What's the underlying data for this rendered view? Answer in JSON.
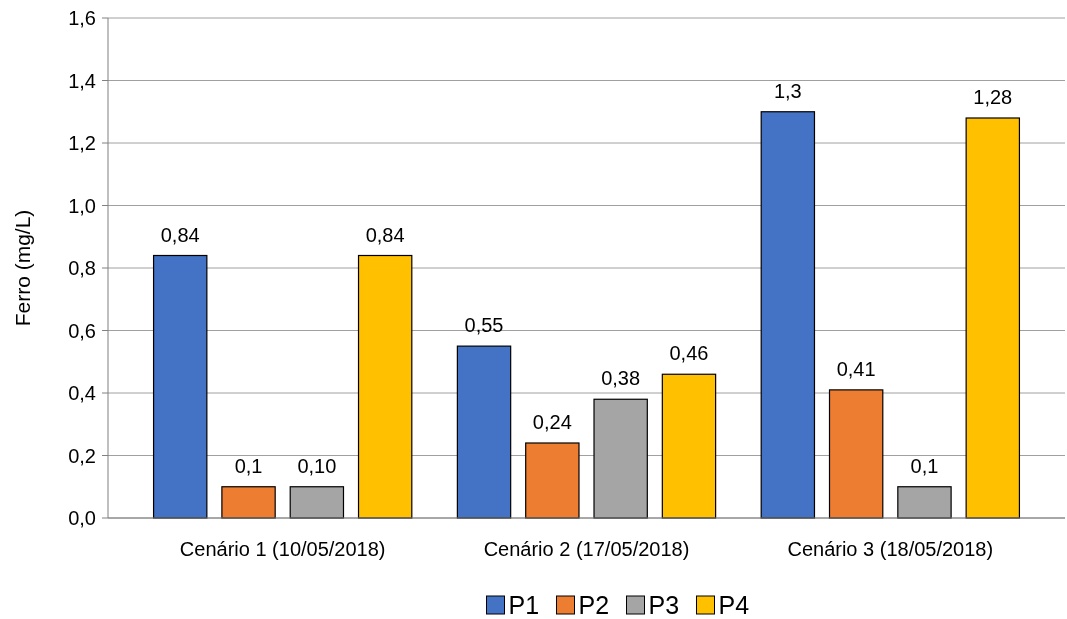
{
  "chart_data": {
    "type": "bar",
    "ylabel": "Ferro (mg/L)",
    "categories": [
      "Cenário 1 (10/05/2018)",
      "Cenário 2 (17/05/2018)",
      "Cenário 3 (18/05/2018)"
    ],
    "series": [
      {
        "name": "P1",
        "color": "#4472c4",
        "values": [
          0.84,
          0.55,
          1.3
        ],
        "value_labels": [
          "0,84",
          "0,55",
          "1,3"
        ]
      },
      {
        "name": "P2",
        "color": "#ed7d31",
        "values": [
          0.1,
          0.24,
          0.41
        ],
        "value_labels": [
          "0,1",
          "0,24",
          "0,41"
        ]
      },
      {
        "name": "P3",
        "color": "#a5a5a5",
        "values": [
          0.1,
          0.38,
          0.1
        ],
        "value_labels": [
          "0,10",
          "0,38",
          "0,1"
        ]
      },
      {
        "name": "P4",
        "color": "#ffc000",
        "values": [
          0.84,
          0.46,
          1.28
        ],
        "value_labels": [
          "0,84",
          "0,46",
          "1,28"
        ]
      }
    ],
    "ylim": [
      0,
      1.6
    ],
    "yticks": [
      {
        "value": 0,
        "label": "0,0"
      },
      {
        "value": 0.2,
        "label": "0,2"
      },
      {
        "value": 0.4,
        "label": "0,4"
      },
      {
        "value": 0.6,
        "label": "0,6"
      },
      {
        "value": 0.8,
        "label": "0,8"
      },
      {
        "value": 1.0,
        "label": "1,0"
      },
      {
        "value": 1.2,
        "label": "1,2"
      },
      {
        "value": 1.4,
        "label": "1,4"
      },
      {
        "value": 1.6,
        "label": "1,6"
      }
    ],
    "grid": "y",
    "legend": "bottom"
  }
}
